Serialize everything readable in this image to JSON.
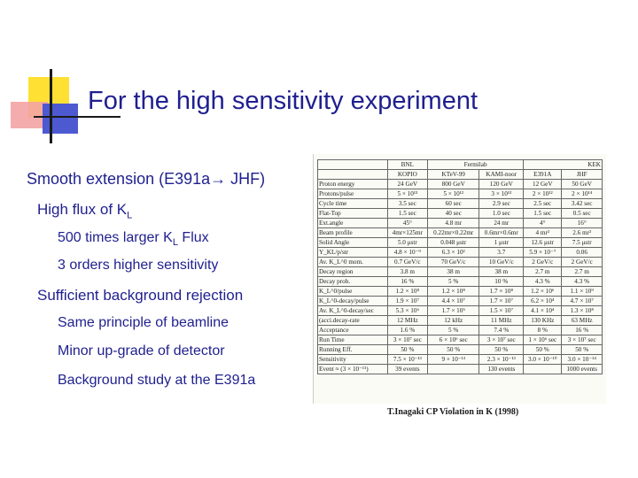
{
  "slide": {
    "title": "For the high sensitivity experiment",
    "bullets": {
      "b1": {
        "text": "Smooth extension (E391a",
        "arrow": "→",
        "tail": " JHF)"
      },
      "b2": {
        "text": "High flux of K",
        "sub": "L"
      },
      "b3": {
        "pre": "500 times larger K",
        "sub": "L",
        "post": " Flux"
      },
      "b4": "3 orders higher sensitivity",
      "b5": "Sufficient background rejection",
      "b6": "Same principle of beamline",
      "b7": "Minor up-grade of detector",
      "b8": "Background study at the E391a"
    },
    "citation": "T.Inagaki CP Violation in K (1998)"
  },
  "comparison_table": {
    "lab_headers": [
      "BNL",
      "Fermilab",
      "KEK"
    ],
    "columns": [
      "KOPIO",
      "KTeV-99",
      "KAMI-noor",
      "E391A",
      "JHF"
    ],
    "rows": [
      {
        "label": "Proton energy",
        "values": [
          "24 GeV",
          "800 GeV",
          "120 GeV",
          "12 GeV",
          "50 GeV"
        ]
      },
      {
        "label": "Protons/pulse",
        "values": [
          "5 × 10¹³",
          "5 × 10¹²",
          "3 × 10¹³",
          "2 × 10¹²",
          "2 × 10¹⁴"
        ]
      },
      {
        "label": "Cycle time",
        "values": [
          "3.5 sec",
          "60 sec",
          "2.9 sec",
          "2.5 sec",
          "3.42 sec"
        ]
      },
      {
        "label": "Flat-Top",
        "values": [
          "1.5 sec",
          "40 sec",
          "1.0 sec",
          "1.5 sec",
          "0.5 sec"
        ]
      },
      {
        "label": "Ext.angle",
        "values": [
          "45°",
          "4.8 mr",
          "24 mr",
          "4°",
          "16°"
        ]
      },
      {
        "label": "Beam profile",
        "values": [
          "4mr×125mr",
          "0.22mr×0.22mr",
          "0.6mr×0.6mr",
          "4 mr²",
          "2.6 mr²"
        ]
      },
      {
        "label": "Solid Angle",
        "values": [
          "5.0 μstr",
          "0.048 μstr",
          "1 μstr",
          "12.6 μstr",
          "7.5 μstr"
        ]
      },
      {
        "label": "Y_KL/p/str",
        "values": [
          "4.8 × 10⁻⁹",
          "6.3 × 10²",
          "3.7",
          "5.9 × 10⁻⁷",
          "0.06"
        ]
      },
      {
        "label": "Av. K_L^0 mom.",
        "values": [
          "0.7 GeV/c",
          "70 GeV/c",
          "10 GeV/c",
          "2 GeV/c",
          "2 GeV/c"
        ]
      },
      {
        "label": "Decay region",
        "values": [
          "3.8 m",
          "38 m",
          "38 m",
          "2.7 m",
          "2.7 m"
        ]
      },
      {
        "label": "Decay prob.",
        "values": [
          "16 %",
          "5 %",
          "10 %",
          "4.3 %",
          "4.3 %"
        ]
      },
      {
        "label": "K_L^0/pulse",
        "values": [
          "1.2 × 10⁸",
          "1.2 × 10⁸",
          "1.7 × 10⁸",
          "1.2 × 10⁶",
          "1.1 × 10⁹"
        ]
      },
      {
        "label": "K_L^0-decay/pulse",
        "values": [
          "1.9 × 10⁷",
          "4.4 × 10⁷",
          "1.7 × 10⁷",
          "6.2 × 10⁴",
          "4.7 × 10⁷"
        ]
      },
      {
        "label": "Av. K_L^0-decay/sec",
        "values": [
          "5.3 × 10⁶",
          "1.7 × 10⁵",
          "1.5 × 10⁷",
          "4.1 × 10⁴",
          "1.3 × 10⁸"
        ]
      },
      {
        "label": "(acci.decay-rate",
        "values": [
          "12 MHz",
          "12 kHz",
          "11 MHz",
          "130 KHz",
          "63 MHz"
        ]
      },
      {
        "label": "Acceptance",
        "values": [
          "1.6 %",
          "5 %",
          "7.4 %",
          "8 %",
          "16 %"
        ]
      },
      {
        "label": "Run Time",
        "values": [
          "3 × 10⁷ sec",
          "6 × 10⁶ sec",
          "3 × 10⁷ sec",
          "1 × 10⁶ sec",
          "3 × 10⁷ sec"
        ]
      },
      {
        "label": "Running Eff.",
        "values": [
          "50 %",
          "50 %",
          "50 %",
          "50 %",
          "50 %"
        ]
      },
      {
        "label": "Sensitivity",
        "values": [
          "7.5 × 10⁻¹³",
          "9 × 10⁻¹³",
          "2.3 × 10⁻¹³",
          "3.0 × 10⁻¹⁰",
          "3.0 × 10⁻¹⁴"
        ]
      },
      {
        "label": "Event ≈ (3 × 10⁻¹¹)",
        "values": [
          "39 events",
          "",
          "130 events",
          "",
          "1000 events"
        ]
      }
    ]
  },
  "decoration": {
    "yellow": "#ffe033",
    "red": "#f4a3a3",
    "blue": "#4d59d1",
    "text": "#1f1f8f"
  }
}
